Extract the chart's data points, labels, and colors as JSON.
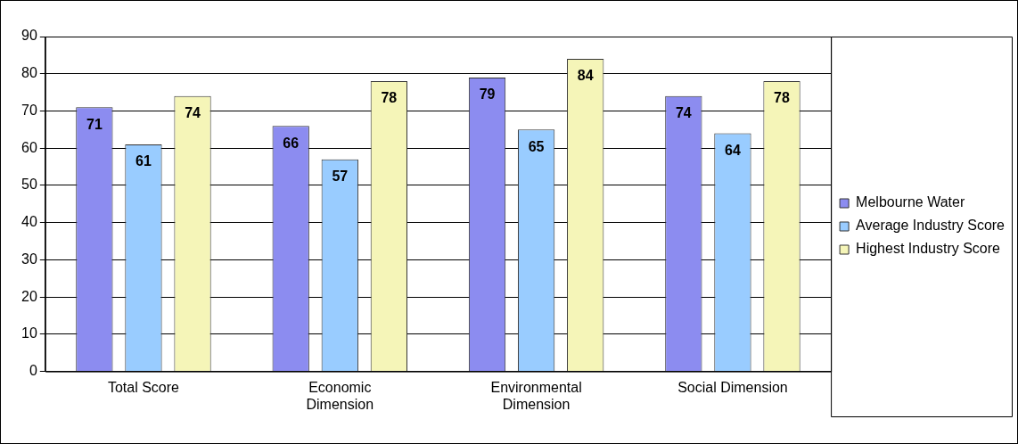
{
  "chart_data": {
    "type": "bar",
    "categories": [
      "Total Score",
      "Economic Dimension",
      "Environmental Dimension",
      "Social Dimension"
    ],
    "series": [
      {
        "name": "Melbourne Water",
        "color": "#8c8cf0",
        "values": [
          71,
          66,
          79,
          74
        ]
      },
      {
        "name": "Average Industry Score",
        "color": "#99ccff",
        "values": [
          61,
          57,
          65,
          64
        ]
      },
      {
        "name": "Highest Industry Score",
        "color": "#f5f5b8",
        "values": [
          74,
          78,
          84,
          78
        ]
      }
    ],
    "ylim": [
      0,
      90
    ],
    "yticks": [
      0,
      10,
      20,
      30,
      40,
      50,
      60,
      70,
      80,
      90
    ],
    "grid": "y",
    "legend": "right",
    "data_labels": true
  }
}
